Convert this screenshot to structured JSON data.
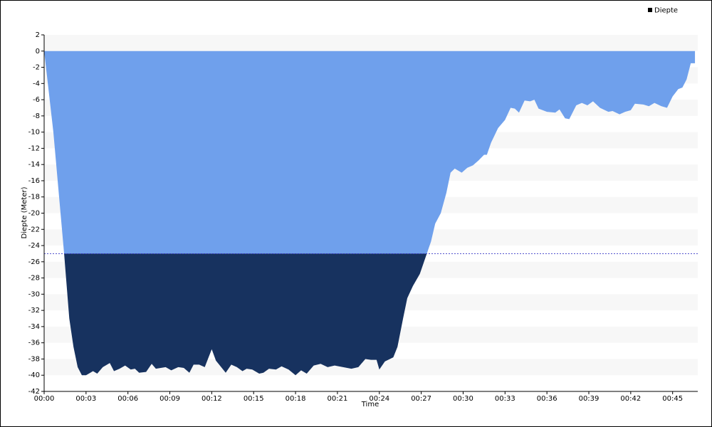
{
  "chart_data": {
    "type": "area",
    "title": null,
    "y_label": "Diepte (Meter)",
    "x_label": "Time",
    "threshold": -25,
    "threshold_color": "#3a3ac8",
    "x": [
      0,
      0.66,
      1.43,
      1.8,
      2.1,
      2.4,
      2.7,
      3.0,
      3.5,
      3.8,
      4.2,
      4.7,
      5.0,
      5.4,
      5.8,
      6.2,
      6.5,
      6.8,
      7.3,
      7.7,
      8.0,
      8.7,
      9.1,
      9.6,
      10.0,
      10.4,
      10.7,
      11.1,
      11.5,
      12.0,
      12.3,
      13.0,
      13.4,
      13.8,
      14.2,
      14.5,
      14.9,
      15.4,
      15.7,
      16.1,
      16.6,
      17.0,
      17.5,
      18.0,
      18.4,
      18.8,
      19.3,
      19.8,
      20.3,
      20.8,
      21.4,
      22.0,
      22.5,
      23.0,
      23.4,
      23.8,
      24.0,
      24.4,
      25.0,
      25.3,
      25.7,
      26.0,
      26.4,
      26.9,
      27.4,
      27.7,
      28.0,
      28.4,
      28.8,
      29.1,
      29.4,
      29.9,
      30.3,
      30.7,
      31.1,
      31.5,
      31.7,
      32.0,
      32.5,
      33.0,
      33.4,
      33.7,
      34.0,
      34.4,
      34.8,
      35.1,
      35.4,
      36.0,
      36.6,
      36.9,
      37.3,
      37.6,
      38.1,
      38.5,
      38.9,
      39.3,
      39.8,
      40.4,
      40.7,
      41.2,
      41.6,
      42.0,
      42.3,
      42.9,
      43.3,
      43.7,
      44.2,
      44.6,
      45.0,
      45.4,
      45.7,
      46.0,
      46.3,
      46.6
    ],
    "series": [
      {
        "name": "Diepte",
        "color": "#6fa0ec",
        "below_color": "#17325f",
        "values": [
          0,
          -10,
          -25,
          -33,
          -36.5,
          -39,
          -40,
          -40,
          -39.5,
          -39.8,
          -39,
          -38.5,
          -39.5,
          -39.2,
          -38.8,
          -39.3,
          -39.2,
          -39.7,
          -39.6,
          -38.6,
          -39.2,
          -39,
          -39.4,
          -39,
          -39.1,
          -39.7,
          -38.7,
          -38.7,
          -39,
          -36.8,
          -38.2,
          -39.7,
          -38.7,
          -39,
          -39.5,
          -39.2,
          -39.3,
          -39.8,
          -39.7,
          -39.2,
          -39.3,
          -38.9,
          -39.3,
          -40,
          -39.4,
          -39.8,
          -38.8,
          -38.6,
          -39,
          -38.8,
          -39,
          -39.2,
          -39,
          -38,
          -38.1,
          -38.1,
          -39.3,
          -38.3,
          -37.8,
          -36.5,
          -33,
          -30.5,
          -29,
          -27.5,
          -25,
          -23.5,
          -21.3,
          -20,
          -17.5,
          -15,
          -14.5,
          -15,
          -14.4,
          -14.1,
          -13.5,
          -12.8,
          -12.8,
          -11.3,
          -9.5,
          -8.5,
          -7,
          -7.1,
          -7.6,
          -6.1,
          -6.2,
          -6,
          -7.1,
          -7.5,
          -7.6,
          -7.2,
          -8.3,
          -8.4,
          -6.7,
          -6.4,
          -6.7,
          -6.2,
          -7,
          -7.5,
          -7.4,
          -7.8,
          -7.5,
          -7.3,
          -6.5,
          -6.6,
          -6.8,
          -6.4,
          -6.8,
          -7,
          -5.6,
          -4.7,
          -4.5,
          -3.5,
          -1.5,
          -1.5
        ]
      }
    ],
    "xlim": [
      0,
      46.8
    ],
    "xticks": [
      {
        "value": 0,
        "label": "00:00"
      },
      {
        "value": 3,
        "label": "00:03"
      },
      {
        "value": 6,
        "label": "00:06"
      },
      {
        "value": 9,
        "label": "00:09"
      },
      {
        "value": 12,
        "label": "00:12"
      },
      {
        "value": 15,
        "label": "00:15"
      },
      {
        "value": 18,
        "label": "00:18"
      },
      {
        "value": 21,
        "label": "00:21"
      },
      {
        "value": 24,
        "label": "00:24"
      },
      {
        "value": 27,
        "label": "00:27"
      },
      {
        "value": 30,
        "label": "00:30"
      },
      {
        "value": 33,
        "label": "00:33"
      },
      {
        "value": 36,
        "label": "00:36"
      },
      {
        "value": 39,
        "label": "00:39"
      },
      {
        "value": 42,
        "label": "00:42"
      },
      {
        "value": 45,
        "label": "00:45"
      }
    ],
    "ylim": [
      -42,
      2
    ],
    "yticks": [
      2,
      0,
      -2,
      -4,
      -6,
      -8,
      -10,
      -12,
      -14,
      -16,
      -18,
      -20,
      -22,
      -24,
      -26,
      -28,
      -30,
      -32,
      -34,
      -36,
      -38,
      -40,
      -42
    ],
    "grid": "bands",
    "legend": "top-right"
  }
}
